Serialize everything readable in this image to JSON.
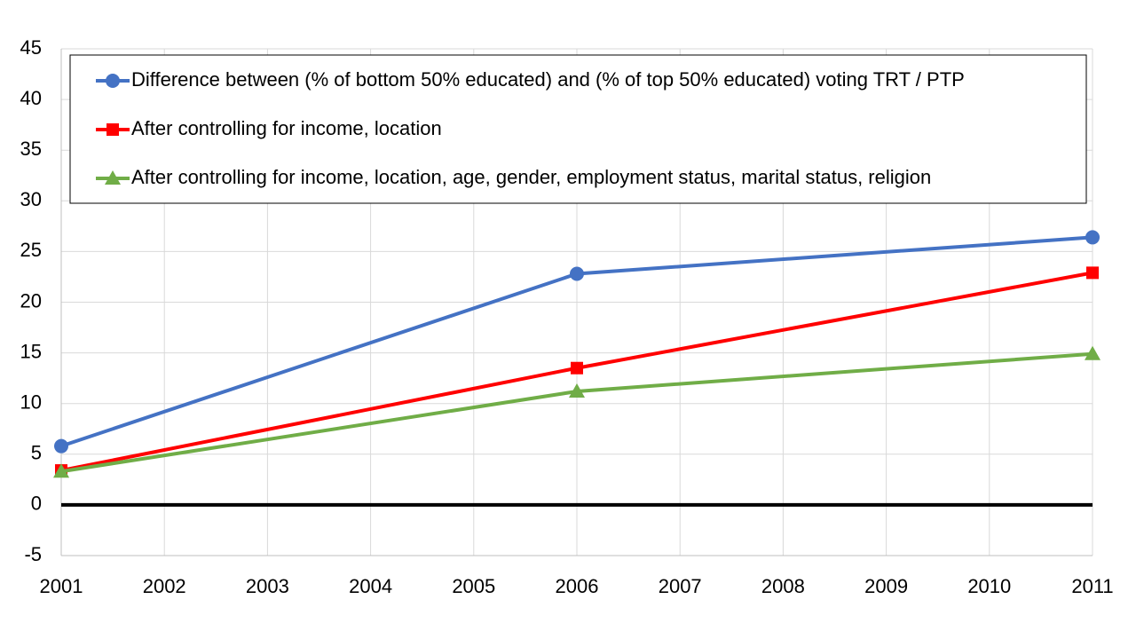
{
  "chart_data": {
    "type": "line",
    "x": [
      2001,
      2006,
      2011
    ],
    "series": [
      {
        "name": "Difference between (% of bottom 50% educated) and (% of top 50% educated) voting TRT / PTP",
        "color": "#4472c4",
        "marker": "circle",
        "values": [
          5.8,
          22.8,
          26.4
        ]
      },
      {
        "name": "After controlling for income, location",
        "color": "#ff0000",
        "marker": "square",
        "values": [
          3.4,
          13.5,
          22.9
        ]
      },
      {
        "name": "After controlling for income, location, age, gender, employment status, marital status, religion",
        "color": "#70ad47",
        "marker": "triangle",
        "values": [
          3.3,
          11.2,
          14.9
        ]
      }
    ],
    "xlim": [
      2001,
      2011
    ],
    "xticks": [
      2001,
      2002,
      2003,
      2004,
      2005,
      2006,
      2007,
      2008,
      2009,
      2010,
      2011
    ],
    "ylim": [
      -5,
      45
    ],
    "yticks": [
      -5,
      0,
      5,
      10,
      15,
      20,
      25,
      30,
      35,
      40,
      45
    ],
    "reference_line": 0,
    "grid": true,
    "legend": "top"
  }
}
